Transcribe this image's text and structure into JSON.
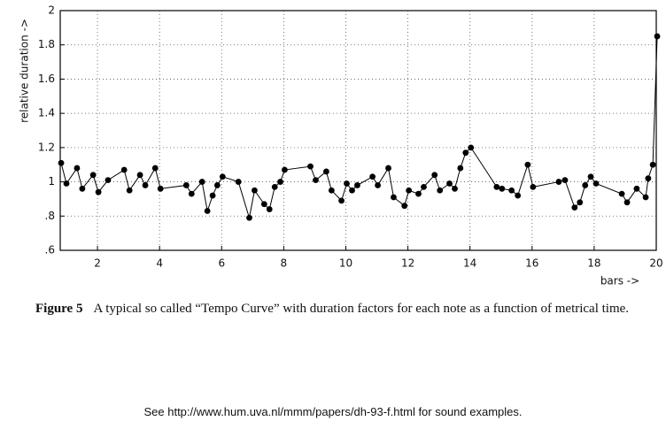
{
  "chart_data": {
    "type": "line",
    "ylabel": "relative duration ->",
    "xlabel": "bars ->",
    "xlim": [
      0.8,
      20
    ],
    "ylim": [
      0.6,
      2
    ],
    "xticks": [
      2,
      4,
      6,
      8,
      10,
      12,
      14,
      16,
      18,
      20
    ],
    "yticks": [
      {
        "value": 0.6,
        "label": ".6"
      },
      {
        "value": 0.8,
        "label": ".8"
      },
      1,
      1.2,
      1.4,
      1.6,
      1.8,
      2
    ],
    "grid": true,
    "color": "#000000",
    "x": [
      0.83,
      1.0,
      1.34,
      1.51,
      1.86,
      2.03,
      2.34,
      2.86,
      3.03,
      3.37,
      3.54,
      3.86,
      4.03,
      4.86,
      5.03,
      5.37,
      5.54,
      5.71,
      5.86,
      6.03,
      6.54,
      6.89,
      7.06,
      7.37,
      7.54,
      7.71,
      7.89,
      8.03,
      8.86,
      9.03,
      9.37,
      9.54,
      9.86,
      10.03,
      10.2,
      10.37,
      10.86,
      11.03,
      11.37,
      11.54,
      11.89,
      12.03,
      12.34,
      12.51,
      12.86,
      13.03,
      13.34,
      13.51,
      13.69,
      13.86,
      14.03,
      14.86,
      15.03,
      15.34,
      15.54,
      15.86,
      16.03,
      16.86,
      17.06,
      17.37,
      17.54,
      17.71,
      17.89,
      18.06,
      18.89,
      19.06,
      19.37,
      19.66,
      19.74,
      19.89,
      20.03
    ],
    "y": [
      1.11,
      0.99,
      1.08,
      0.96,
      1.04,
      0.94,
      1.01,
      1.07,
      0.95,
      1.04,
      0.98,
      1.08,
      0.96,
      0.98,
      0.93,
      1.0,
      0.83,
      0.92,
      0.98,
      1.03,
      1.0,
      0.79,
      0.95,
      0.87,
      0.84,
      0.97,
      1.0,
      1.07,
      1.09,
      1.01,
      1.06,
      0.95,
      0.89,
      0.99,
      0.95,
      0.98,
      1.03,
      0.98,
      1.08,
      0.91,
      0.86,
      0.95,
      0.93,
      0.97,
      1.04,
      0.95,
      0.99,
      0.96,
      1.08,
      1.17,
      1.2,
      0.97,
      0.96,
      0.95,
      0.92,
      1.1,
      0.97,
      1.0,
      1.01,
      0.85,
      0.88,
      0.98,
      1.03,
      0.99,
      0.93,
      0.88,
      0.96,
      0.91,
      1.02,
      1.1,
      1.85
    ]
  },
  "caption": {
    "label": "Figure 5",
    "text": "A typical so called “Tempo Curve” with duration factors for each note as a function of metrical time."
  },
  "footer": "See http://www.hum.uva.nl/mmm/papers/dh-93-f.html for sound examples."
}
